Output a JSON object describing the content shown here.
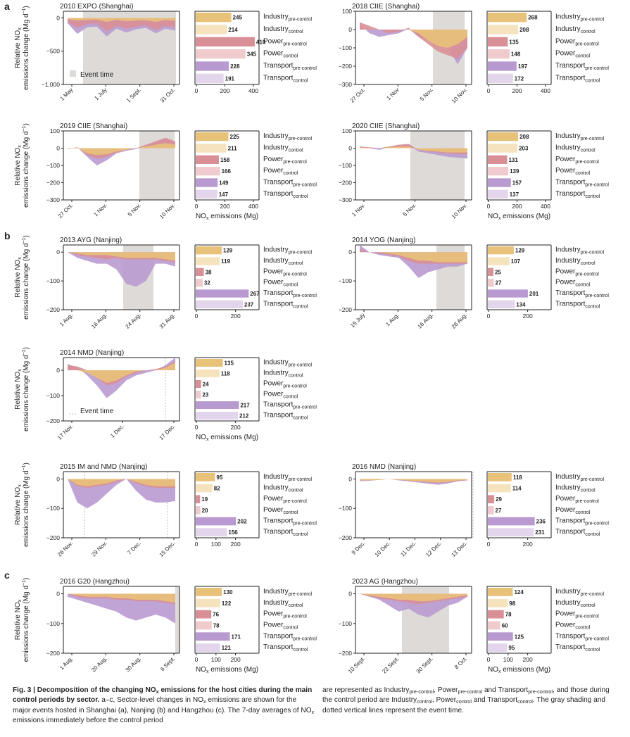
{
  "sector_labels": {
    "industry_pre": {
      "base": "Industry",
      "sub": "pre-control"
    },
    "industry_ctl": {
      "base": "Industry",
      "sub": "control"
    },
    "power_pre": {
      "base": "Power",
      "sub": "pre-control"
    },
    "power_ctl": {
      "base": "Power",
      "sub": "control"
    },
    "transport_pre": {
      "base": "Transport",
      "sub": "pre-control"
    },
    "transport_ctl": {
      "base": "Transport",
      "sub": "control"
    }
  },
  "ylabel": {
    "line1": "Relative NO",
    "line1_sub": "x",
    "line2": "emissions change (Mg d",
    "line2_sup": "−1",
    "line2_end": ")"
  },
  "xlabel_bar": {
    "base": "NO",
    "sub": "x",
    "rest": " emissions (Mg)"
  },
  "legend_event_time": "Event time",
  "section_labels": [
    "a",
    "b",
    "c"
  ],
  "colors": {
    "industry": "#E9C27A",
    "industry_light": "#F5E3BD",
    "power": "#D98F96",
    "power_light": "#EFCBCD",
    "transport": "#B99AD0",
    "transport_light": "#E2D5EC",
    "shade": "#DDDAD8",
    "axis": "#222222"
  },
  "chart_data": [
    {
      "type": "area",
      "title": "2010 EXPO (Shanghai)",
      "ylim": [
        -1000,
        100
      ],
      "yticks": [
        0,
        -500,
        -1000
      ],
      "ytick_labels": [
        "0",
        "−500",
        "−1,000"
      ],
      "xticks": [
        "1 May",
        "1 July",
        "1 Sept.",
        "31 Oct."
      ],
      "event": "shade",
      "legend": "Event time",
      "series": {
        "industry": [
          -20,
          -40,
          -30,
          -25,
          -60,
          -30,
          -50,
          -40,
          -35,
          -60,
          -30,
          -45
        ],
        "power": [
          -60,
          -150,
          -90,
          -80,
          -200,
          -120,
          -160,
          -130,
          -110,
          -180,
          -120,
          -140
        ],
        "transport": [
          -80,
          -240,
          -140,
          -130,
          -280,
          -160,
          -220,
          -170,
          -150,
          -230,
          -160,
          -190
        ]
      },
      "bars": {
        "industry_pre": 245,
        "industry_ctl": 214,
        "power_pre": 410,
        "power_ctl": 345,
        "transport_pre": 228,
        "transport_ctl": 191
      },
      "bar_ticks": [
        "0",
        "200",
        "400"
      ]
    },
    {
      "type": "area",
      "title": "2018 CIIE (Shanghai)",
      "ylim": [
        -300,
        100
      ],
      "yticks": [
        100,
        0,
        -100,
        -200,
        -300
      ],
      "ytick_labels": [
        "100",
        "0",
        "−100",
        "−200",
        "−300"
      ],
      "xticks": [
        "27 Oct.",
        "1 Nov",
        "5 Nov.",
        "10 Nov."
      ],
      "event": "shade",
      "series": {
        "industry": [
          0,
          0,
          0,
          0,
          0,
          0,
          -20,
          -60,
          -90,
          -100,
          -80,
          -40
        ],
        "power": [
          40,
          20,
          0,
          -20,
          -10,
          10,
          -40,
          -80,
          -120,
          -140,
          -160,
          -100
        ],
        "transport": [
          30,
          -20,
          -40,
          -30,
          -20,
          5,
          -40,
          -60,
          -80,
          -100,
          -190,
          -100
        ]
      },
      "bars": {
        "industry_pre": 268,
        "industry_ctl": 208,
        "power_pre": 135,
        "power_ctl": 148,
        "transport_pre": 197,
        "transport_ctl": 172
      },
      "bar_ticks": [
        "0",
        "200",
        "400"
      ]
    },
    {
      "type": "area",
      "title": "2019 CIIE (Shanghai)",
      "ylim": [
        -300,
        100
      ],
      "yticks": [
        100,
        0,
        -100,
        -200,
        -300
      ],
      "ytick_labels": [
        "100",
        "0",
        "−100",
        "−200",
        "−300"
      ],
      "xticks": [
        "27 Oct.",
        "1 Nov.",
        "5 Nov.",
        "10 Nov."
      ],
      "event": "shade",
      "series": {
        "industry": [
          -5,
          0,
          -30,
          -40,
          -35,
          -20,
          -10,
          0,
          10,
          20,
          30,
          20
        ],
        "power": [
          -5,
          5,
          -40,
          -60,
          -50,
          -25,
          -10,
          0,
          20,
          40,
          60,
          40
        ],
        "transport": [
          -5,
          5,
          -50,
          -100,
          -70,
          -30,
          -15,
          -5,
          15,
          35,
          55,
          30
        ]
      },
      "bars": {
        "industry_pre": 225,
        "industry_ctl": 211,
        "power_pre": 158,
        "power_ctl": 166,
        "transport_pre": 149,
        "transport_ctl": 147
      },
      "bar_ticks": [
        "0",
        "200",
        "400"
      ]
    },
    {
      "type": "area",
      "title": "2020 CIIE (Shanghai)",
      "ylim": [
        -300,
        100
      ],
      "yticks": [
        100,
        0,
        -100,
        -200,
        -300
      ],
      "ytick_labels": [
        "100",
        "0",
        "−100",
        "−200",
        "−300"
      ],
      "xticks": [
        "1 Nov.",
        "5 Nov.",
        "10 Nov."
      ],
      "event": "shade",
      "series": {
        "industry": [
          5,
          0,
          0,
          5,
          10,
          10,
          -10,
          -15,
          -20,
          -25,
          -25,
          -25
        ],
        "power": [
          10,
          5,
          0,
          10,
          20,
          25,
          -10,
          -20,
          -25,
          -30,
          -35,
          -35
        ],
        "transport": [
          10,
          0,
          -10,
          5,
          20,
          20,
          -20,
          -30,
          -40,
          -50,
          -55,
          -60
        ]
      },
      "bars": {
        "industry_pre": 208,
        "industry_ctl": 203,
        "power_pre": 131,
        "power_ctl": 139,
        "transport_pre": 157,
        "transport_ctl": 137
      },
      "bar_ticks": [
        "0",
        "200",
        "400"
      ]
    },
    {
      "type": "area",
      "title": "2013 AYG (Nanjing)",
      "ylim": [
        -200,
        25
      ],
      "yticks": [
        0,
        -100,
        -200
      ],
      "ytick_labels": [
        "0",
        "−100",
        "−200"
      ],
      "xticks": [
        "1 Aug.",
        "16 Aug.",
        "24 Aug.",
        "31 Aug."
      ],
      "event": "shade",
      "series": {
        "industry": [
          0,
          -5,
          -10,
          -10,
          -10,
          -15,
          -20,
          -20,
          -20,
          -20,
          -25,
          -30
        ],
        "power": [
          0,
          -10,
          -15,
          -20,
          -25,
          -20,
          -25,
          -25,
          -25,
          -25,
          -30,
          -35
        ],
        "transport": [
          0,
          -20,
          -30,
          -40,
          -40,
          -60,
          -110,
          -120,
          -100,
          -40,
          -40,
          -50
        ]
      },
      "bars": {
        "industry_pre": 129,
        "industry_ctl": 119,
        "power_pre": 38,
        "power_ctl": 32,
        "transport_pre": 267,
        "transport_ctl": 237
      },
      "bar_ticks": [
        "0",
        "200"
      ]
    },
    {
      "type": "area",
      "title": "2014 YOG (Nanjing)",
      "ylim": [
        -200,
        25
      ],
      "yticks": [
        0,
        -100,
        -200
      ],
      "ytick_labels": [
        "0",
        "−100",
        "−200"
      ],
      "xticks": [
        "15 July",
        "1 Aug.",
        "16 Aug.",
        "28 Aug."
      ],
      "event": "shade",
      "series": {
        "industry": [
          0,
          0,
          0,
          -5,
          -10,
          -20,
          -30,
          -30,
          -35,
          -35,
          -35,
          -35
        ],
        "power": [
          10,
          0,
          -5,
          -10,
          -15,
          -30,
          -40,
          -40,
          -40,
          -40,
          -40,
          -40
        ],
        "transport": [
          25,
          0,
          -10,
          -15,
          -20,
          -50,
          -90,
          -70,
          -60,
          -50,
          -50,
          -40
        ]
      },
      "bars": {
        "industry_pre": 129,
        "industry_ctl": 107,
        "power_pre": 25,
        "power_ctl": 27,
        "transport_pre": 201,
        "transport_ctl": 134
      },
      "bar_ticks": [
        "0",
        "200"
      ]
    },
    {
      "type": "area",
      "title": "2014 NMD (Nanjing)",
      "ylim": [
        -200,
        50
      ],
      "yticks": [
        0,
        -100,
        -200
      ],
      "ytick_labels": [
        "0",
        "−100",
        "−200"
      ],
      "xticks": [
        "17 Nov.",
        "1 Dec.",
        "17 Dec."
      ],
      "event": "line",
      "legend": "Event time",
      "series": {
        "industry": [
          0,
          0,
          -10,
          -30,
          -50,
          -40,
          -20,
          -5,
          0,
          0,
          10,
          30
        ],
        "power": [
          20,
          15,
          0,
          -30,
          -60,
          -50,
          -25,
          -10,
          0,
          5,
          15,
          35
        ],
        "transport": [
          25,
          10,
          -20,
          -60,
          -110,
          -80,
          -40,
          -20,
          -10,
          0,
          20,
          50
        ]
      },
      "bars": {
        "industry_pre": 135,
        "industry_ctl": 118,
        "power_pre": 24,
        "power_ctl": 23,
        "transport_pre": 217,
        "transport_ctl": 212
      },
      "bar_ticks": [
        "0",
        "200"
      ]
    },
    {
      "type": "area",
      "title": "2015 IM and NMD (Nanjing)",
      "ylim": [
        -200,
        25
      ],
      "yticks": [
        0,
        -100,
        -200
      ],
      "ytick_labels": [
        "0",
        "−100",
        "−200"
      ],
      "xticks": [
        "26 Nov.",
        "29 Nov.",
        "7 Dec.",
        "15 Dec."
      ],
      "event": "line",
      "series": {
        "industry": [
          0,
          -20,
          -25,
          -20,
          -15,
          -5,
          0,
          -10,
          -20,
          -25,
          -25,
          -25
        ],
        "power": [
          0,
          -25,
          -30,
          -25,
          -20,
          -10,
          0,
          -15,
          -25,
          -30,
          -30,
          -30
        ],
        "transport": [
          0,
          -80,
          -100,
          -80,
          -50,
          -20,
          0,
          -40,
          -70,
          -80,
          -80,
          -75
        ]
      },
      "bars": {
        "industry_pre": 95,
        "industry_ctl": 82,
        "power_pre": 19,
        "power_ctl": 20,
        "transport_pre": 202,
        "transport_ctl": 156
      },
      "bar_ticks": [
        "0",
        "100",
        "200"
      ]
    },
    {
      "type": "area",
      "title": "2016 NMD (Nanjing)",
      "ylim": [
        -200,
        25
      ],
      "yticks": [
        0,
        -100,
        -200
      ],
      "ytick_labels": [
        "0",
        "−100",
        "−200"
      ],
      "xticks": [
        "9 Dec.",
        "10 Dec.",
        "11 Dec.",
        "12 Dec.",
        "13 Dec."
      ],
      "event": "line",
      "series": {
        "industry": [
          -5,
          -5,
          -3,
          0,
          -3,
          -5,
          -8,
          -10,
          -12,
          -10,
          -5,
          -3
        ],
        "power": [
          -5,
          -5,
          -3,
          0,
          -3,
          -6,
          -9,
          -12,
          -14,
          -12,
          -6,
          -4
        ],
        "transport": [
          -8,
          -6,
          -3,
          0,
          -5,
          -8,
          -12,
          -16,
          -20,
          -15,
          -8,
          -5
        ]
      },
      "bars": {
        "industry_pre": 118,
        "industry_ctl": 114,
        "power_pre": 29,
        "power_ctl": 27,
        "transport_pre": 236,
        "transport_ctl": 231
      },
      "bar_ticks": [
        "0",
        "200"
      ]
    },
    {
      "type": "area",
      "title": "2016 G20 (Hangzhou)",
      "ylim": [
        -200,
        25
      ],
      "yticks": [
        0,
        -100,
        -200
      ],
      "ytick_labels": [
        "0",
        "−100",
        "−200"
      ],
      "xticks": [
        "1 Aug.",
        "20 Aug.",
        "30 Aug.",
        "6 Sept."
      ],
      "event": "shade",
      "series": {
        "industry": [
          0,
          -5,
          -10,
          -10,
          -10,
          -15,
          -15,
          -20,
          -20,
          -20,
          -25,
          -30
        ],
        "power": [
          0,
          -10,
          -15,
          -15,
          -15,
          -20,
          -20,
          -25,
          -25,
          -25,
          -30,
          -35
        ],
        "transport": [
          -10,
          -20,
          -30,
          -40,
          -50,
          -60,
          -80,
          -90,
          -80,
          -70,
          -80,
          -100
        ]
      },
      "bars": {
        "industry_pre": 130,
        "industry_ctl": 122,
        "power_pre": 76,
        "power_ctl": 78,
        "transport_pre": 171,
        "transport_ctl": 121
      },
      "bar_ticks": [
        "0",
        "100",
        "200"
      ]
    },
    {
      "type": "area",
      "title": "2023 AG (Hangzhou)",
      "ylim": [
        -200,
        25
      ],
      "yticks": [
        0,
        -100,
        -200
      ],
      "ytick_labels": [
        "0",
        "−100",
        "−200"
      ],
      "xticks": [
        "10 Sept.",
        "23 Sept.",
        "30 Sept.",
        "8 Oct."
      ],
      "event": "shade",
      "series": {
        "industry": [
          0,
          -5,
          -10,
          -15,
          -20,
          -20,
          -25,
          -25,
          -20,
          -15,
          -10,
          -5
        ],
        "power": [
          0,
          -8,
          -15,
          -20,
          -25,
          -30,
          -35,
          -30,
          -25,
          -20,
          -15,
          -10
        ],
        "transport": [
          0,
          -10,
          -20,
          -40,
          -60,
          -50,
          -70,
          -80,
          -60,
          -40,
          -30,
          -10
        ]
      },
      "bars": {
        "industry_pre": 124,
        "industry_ctl": 98,
        "power_pre": 78,
        "power_ctl": 60,
        "transport_pre": 125,
        "transport_ctl": 95
      },
      "bar_ticks": [
        "0",
        "100",
        "200"
      ]
    }
  ],
  "caption": {
    "left_bold": "Fig. 3 | Decomposition of the changing NO",
    "left_bold_sub": "x",
    "left_bold_end": " emissions for the host cities during the main control periods by sector.",
    "left_text": " a–c, Sector-level changes in NO",
    "left_text_sub": "x",
    "left_text_end": " emissions are shown for the major events hosted in Shanghai (a), Nanjing (b) and Hangzhou (c). The 7-day averages of NO",
    "left_text_sub2": "x",
    "left_text_end2": " emissions immediately before the control period",
    "right_text": "are represented as Industry",
    "right_sub1": "pre-control",
    "right_t2": ", Power",
    "right_sub2": "pre-control",
    "right_t3": " and Transport",
    "right_sub3": "pre-control",
    "right_t4": ", and those during the control period are Industry",
    "right_sub4": "control",
    "right_t5": ", Power",
    "right_sub5": "control",
    "right_t6": " and Transport",
    "right_sub6": "control",
    "right_t7": ". The gray shading and dotted vertical lines represent the event time."
  }
}
